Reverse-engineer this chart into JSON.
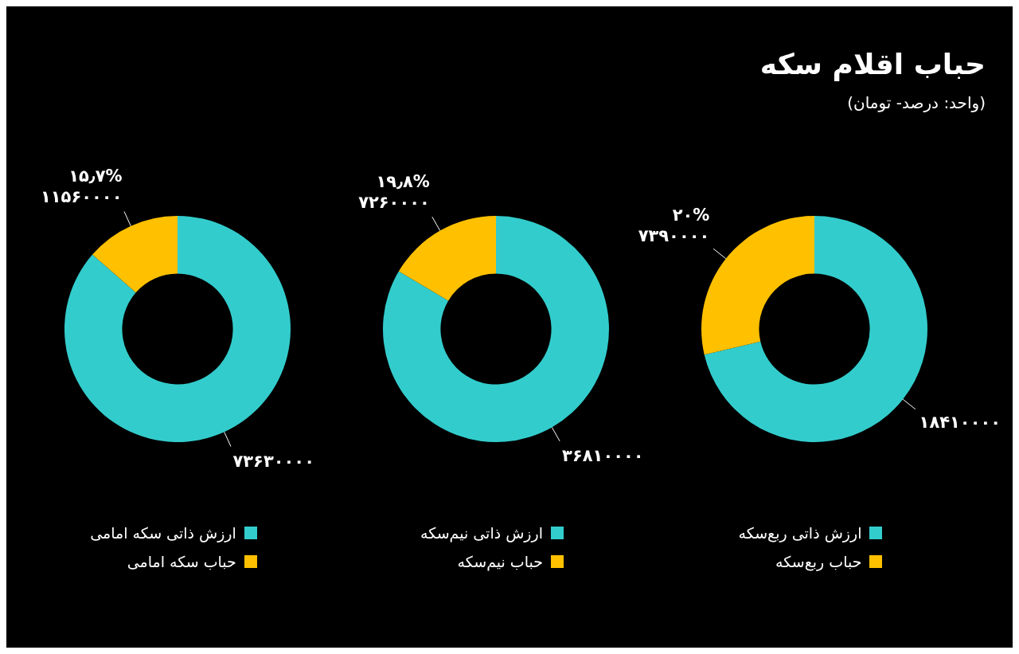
{
  "chart_data": [
    {
      "type": "donut",
      "title": "حباب اقلام سکه",
      "subtitle": "(واحد: درصد- تومان)",
      "categories": [
        "ارزش ذاتی ربع‌سکه",
        "حباب ربع‌سکه"
      ],
      "values": [
        18410000,
        7390000
      ],
      "colors": [
        "#33cccc",
        "#ffc000"
      ],
      "value_labels": [
        "۱۸۴۱۰۰۰۰",
        "۲۰%\n۷۳۹۰۰۰۰"
      ],
      "legend": "bottom"
    },
    {
      "type": "donut",
      "categories": [
        "ارزش ذاتی نیم‌سکه",
        "حباب نیم‌سکه"
      ],
      "values": [
        36810000,
        7260000
      ],
      "colors": [
        "#33cccc",
        "#ffc000"
      ],
      "value_labels": [
        "۳۶۸۱۰۰۰۰",
        "۱۹٫۸%\n۷۲۶۰۰۰۰"
      ],
      "legend": "bottom"
    },
    {
      "type": "donut",
      "categories": [
        "ارزش ذاتی سکه امامی",
        "حباب سکه امامی"
      ],
      "values": [
        73630000,
        11560000
      ],
      "colors": [
        "#33cccc",
        "#ffc000"
      ],
      "value_labels": [
        "۷۳۶۳۰۰۰۰",
        "۱۵٫۷%\n۱۱۵۶۰۰۰۰"
      ],
      "legend": "bottom"
    }
  ]
}
